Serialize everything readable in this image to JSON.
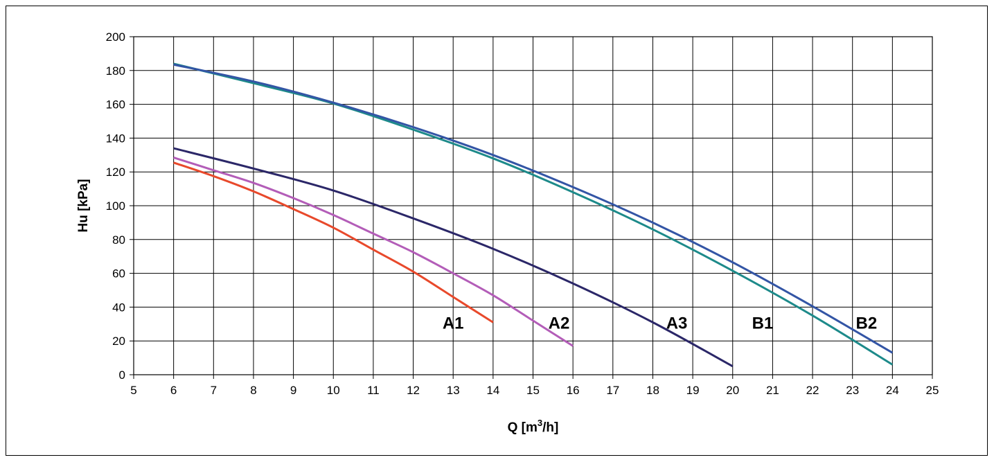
{
  "chart_data": {
    "type": "line",
    "xlabel": "Q  [m³/h]",
    "ylabel": "Hu  [kPa]",
    "xlim": [
      5,
      25
    ],
    "ylim": [
      0,
      200
    ],
    "xticks": [
      5,
      6,
      7,
      8,
      9,
      10,
      11,
      12,
      13,
      14,
      15,
      16,
      17,
      18,
      19,
      20,
      21,
      22,
      23,
      24,
      25
    ],
    "yticks": [
      0,
      20,
      40,
      60,
      80,
      100,
      120,
      140,
      160,
      180,
      200
    ],
    "grid": true,
    "series": [
      {
        "name": "A1",
        "color": "#e8492b",
        "label_at": [
          13,
          31
        ],
        "x": [
          6,
          7,
          8,
          9,
          10,
          11,
          12,
          13,
          14
        ],
        "y": [
          125.5,
          117.5,
          108.5,
          98,
          87,
          74,
          61,
          46,
          31
        ]
      },
      {
        "name": "A2",
        "color": "#b35db8",
        "label_at": [
          15.65,
          31
        ],
        "x": [
          6,
          7,
          8,
          9,
          10,
          11,
          12,
          13,
          14,
          15,
          16
        ],
        "y": [
          128.5,
          121,
          113.5,
          104.5,
          94.5,
          83.5,
          72.5,
          60,
          47,
          32,
          17
        ]
      },
      {
        "name": "A3",
        "color": "#2b2768",
        "label_at": [
          18.6,
          31
        ],
        "x": [
          6,
          8,
          10,
          12,
          14,
          16,
          18,
          20
        ],
        "y": [
          134,
          122,
          109,
          92.5,
          74.5,
          54,
          31,
          5
        ]
      },
      {
        "name": "B1",
        "color": "#1d8a8a",
        "label_at": [
          20.75,
          31
        ],
        "x": [
          6,
          8,
          10,
          12,
          14,
          16,
          18,
          20,
          22,
          24
        ],
        "y": [
          184,
          172.5,
          160.5,
          145,
          128,
          108,
          86,
          61.5,
          35,
          6
        ]
      },
      {
        "name": "B2",
        "color": "#3355a5",
        "label_at": [
          23.35,
          31
        ],
        "x": [
          6,
          8,
          10,
          12,
          14,
          16,
          18,
          20,
          22,
          24
        ],
        "y": [
          183.5,
          173.5,
          161,
          146.5,
          130,
          111,
          90,
          66.5,
          40.5,
          13
        ]
      }
    ]
  }
}
